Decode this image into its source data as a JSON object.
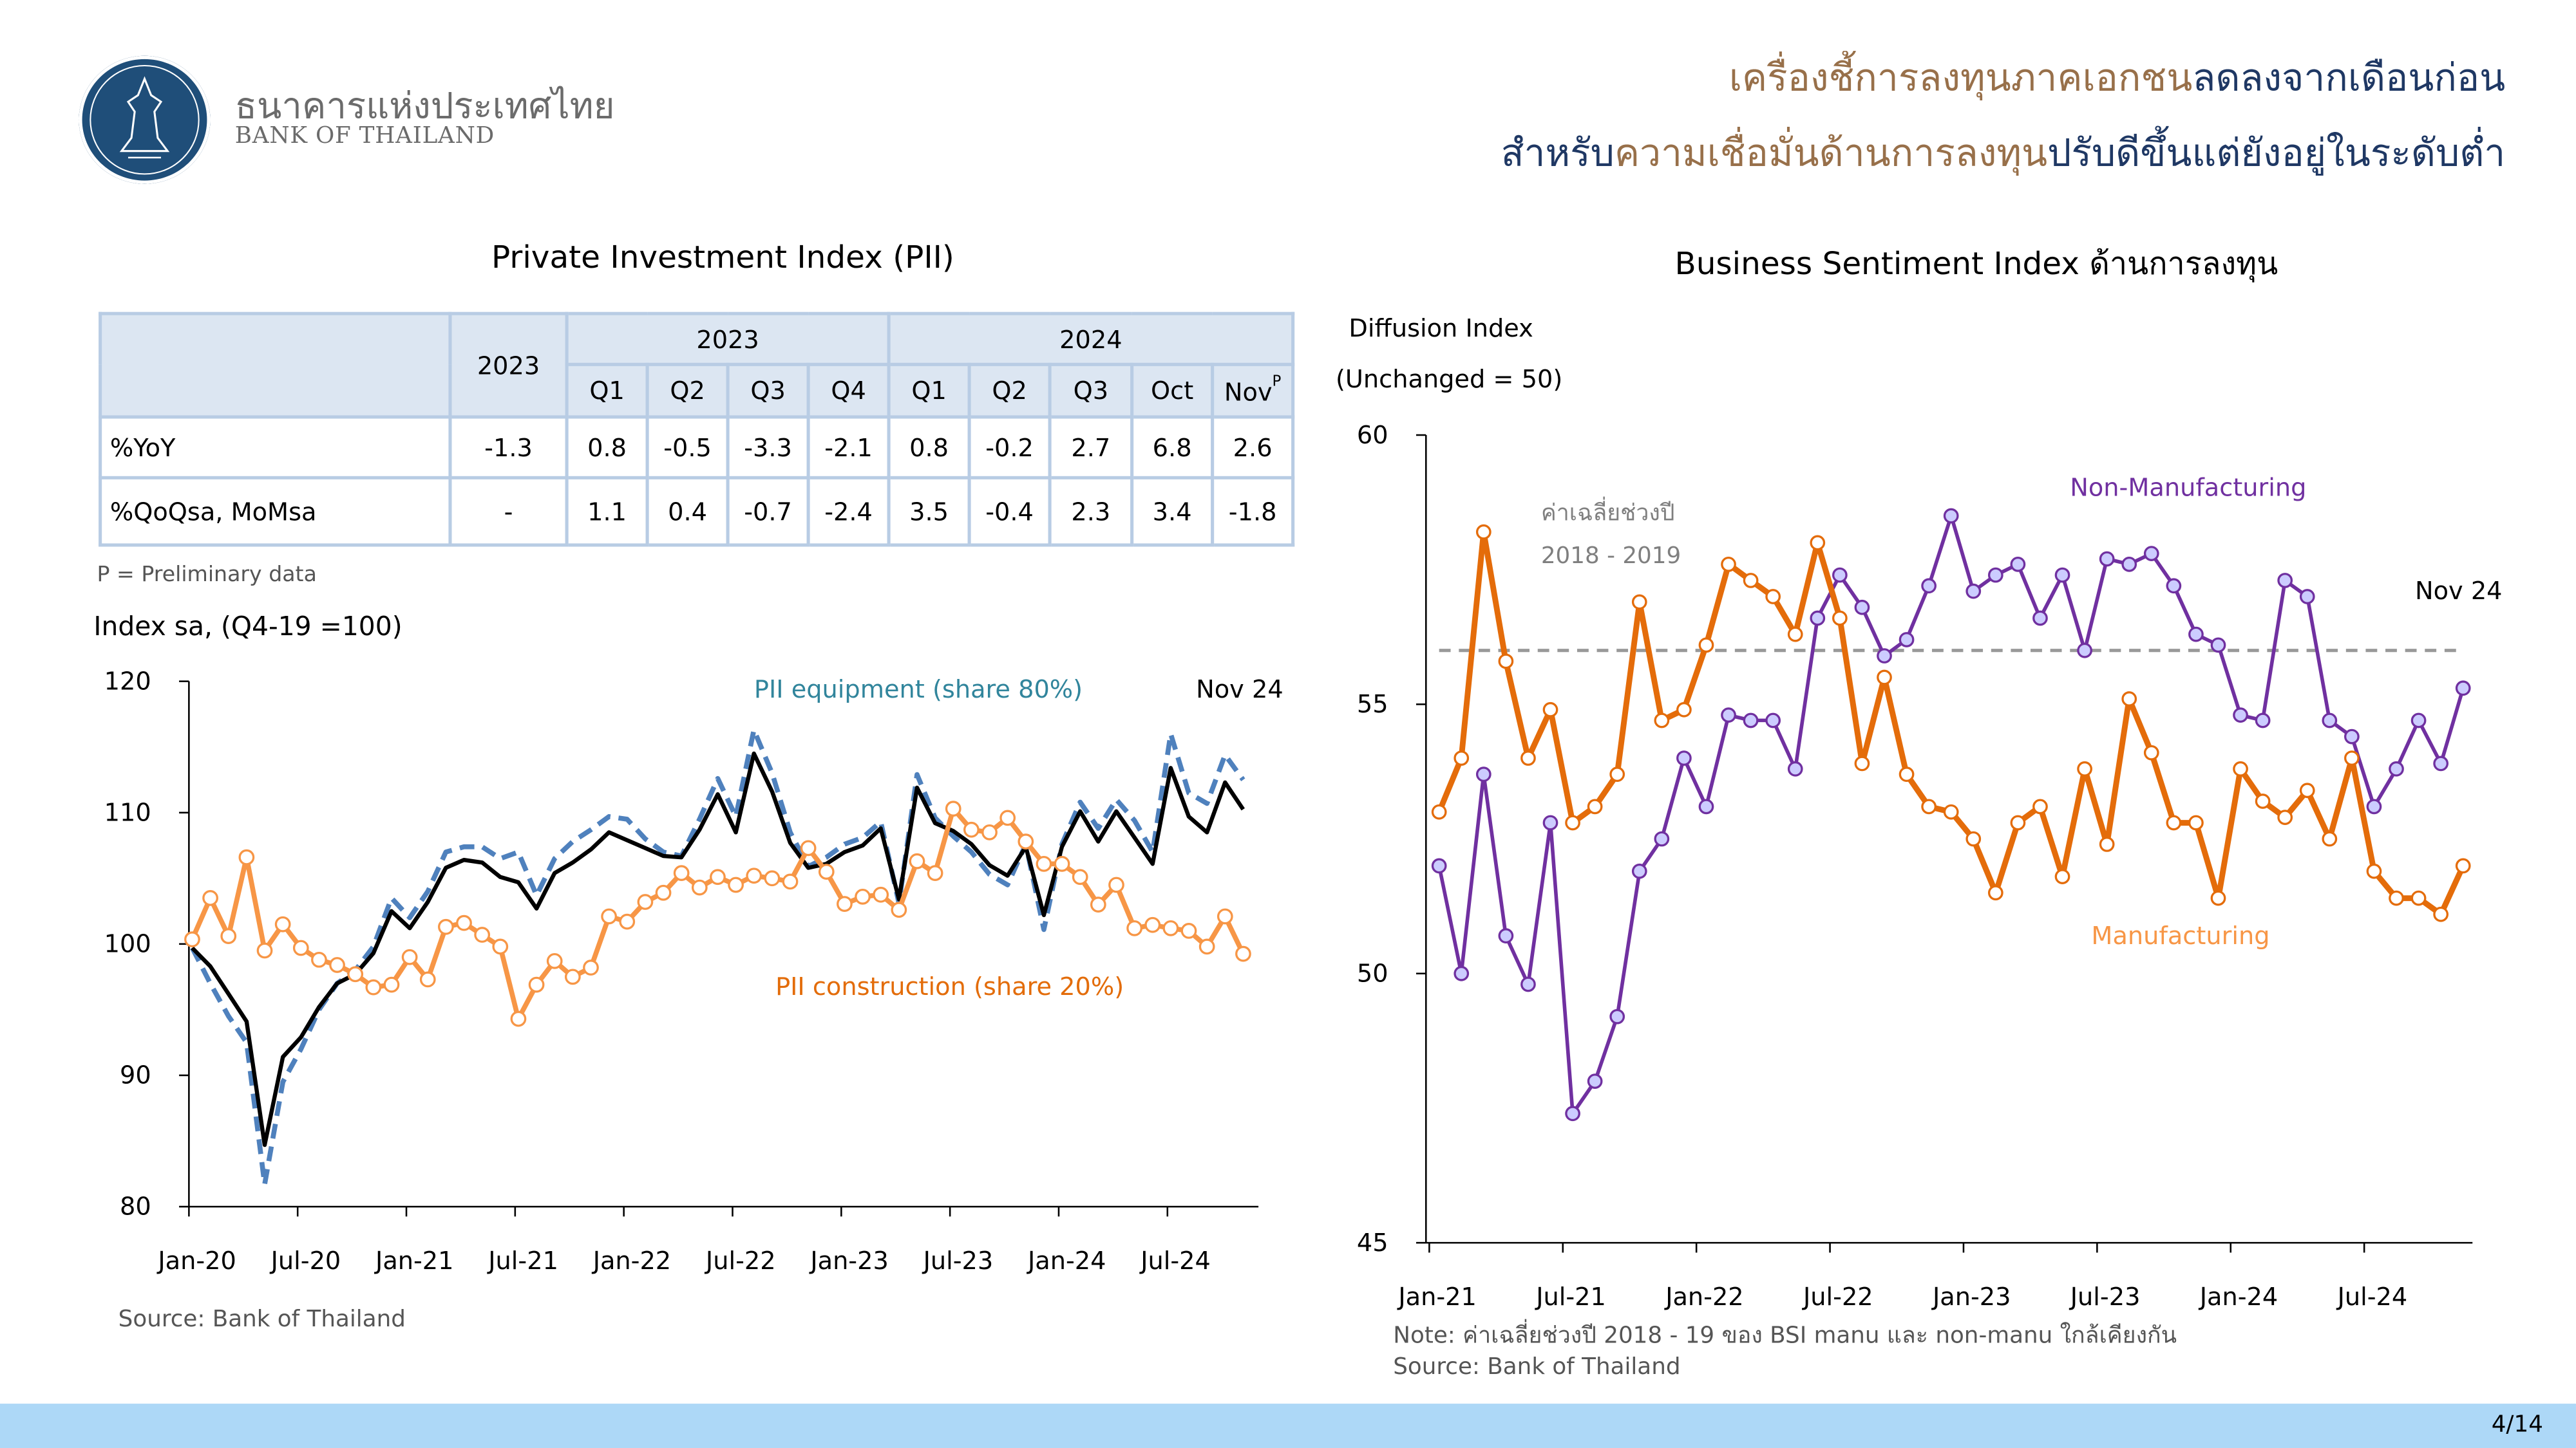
{
  "header": {
    "bank_name_th": "ธนาคารแห่งประเทศไทย",
    "bank_name_en": "BANK OF THAILAND",
    "headline_line1": [
      {
        "text": "เครื่องชี้การลงทุนภาคเอกชน",
        "color": "#98704A"
      },
      {
        "text": "ลดลงจากเดือนก่อน",
        "color": "#1F3864"
      }
    ],
    "headline_line2": [
      {
        "text": "สำหรับ",
        "color": "#1F3864"
      },
      {
        "text": "ความเชื่อมั่นด้านการลงทุน",
        "color": "#98704A"
      },
      {
        "text": "ปรับดีขึ้นแต่ยังอยู่ในระดับต่ำ",
        "color": "#1F3864"
      }
    ]
  },
  "left_panel": {
    "title": "Private Investment Index (PII)",
    "table": {
      "year_col": "2023",
      "group_2023": "2023",
      "group_2024": "2024",
      "periods": [
        "Q1",
        "Q2",
        "Q3",
        "Q4",
        "Q1",
        "Q2",
        "Q3",
        "Oct",
        "Nov"
      ],
      "nov_superscript": "P",
      "rows": [
        {
          "label": "%YoY",
          "year": "-1.3",
          "values": [
            "0.8",
            "-0.5",
            "-3.3",
            "-2.1",
            "0.8",
            "-0.2",
            "2.7",
            "6.8",
            "2.6"
          ]
        },
        {
          "label": "%QoQsa, MoMsa",
          "year": "-",
          "values": [
            "1.1",
            "0.4",
            "-0.7",
            "-2.4",
            "3.5",
            "-0.4",
            "2.3",
            "3.4",
            "-1.8"
          ]
        }
      ]
    },
    "footnote": "P = Preliminary data",
    "index_label": "Index sa, (Q4-19 =100)",
    "source": "Source: Bank of Thailand"
  },
  "right_panel": {
    "title": "Business Sentiment Index ด้านการลงทุน",
    "ylabel_line1": "Diffusion Index",
    "ylabel_line2": "(Unchanged = 50)",
    "note": "Note: ค่าเฉลี่ยช่วงปี 2018 - 19 ของ BSI manu และ non-manu ใกล้เคียงกัน",
    "source": "Source: Bank of Thailand"
  },
  "footer": {
    "page": "4/14"
  },
  "chart_data": [
    {
      "type": "line",
      "title": "Private Investment Index (PII)",
      "ylabel": "Index sa, (Q4-19 =100)",
      "x_start": "Jan-20",
      "x_end": "Nov-24",
      "frequency": "monthly",
      "xticks": [
        "Jan-20",
        "Jul-20",
        "Jan-21",
        "Jul-21",
        "Jan-22",
        "Jul-22",
        "Jan-23",
        "Jul-23",
        "Jan-24",
        "Jul-24"
      ],
      "yticks": [
        80,
        90,
        100,
        110,
        120
      ],
      "ylim": [
        80,
        120
      ],
      "annotation": "Nov 24",
      "series": [
        {
          "name": "PII",
          "color": "#000000",
          "style": "solid",
          "values": [
            99.7,
            98.3,
            96.2,
            94.1,
            84.7,
            91.4,
            92.9,
            95.2,
            97.0,
            97.7,
            99.3,
            102.5,
            101.2,
            103.2,
            105.8,
            106.4,
            106.2,
            105.1,
            104.7,
            102.7,
            105.4,
            106.2,
            107.2,
            108.5,
            107.9,
            107.3,
            106.7,
            106.6,
            108.7,
            111.4,
            108.5,
            114.5,
            111.6,
            107.7,
            105.8,
            106.1,
            107.0,
            107.5,
            108.8,
            103.4,
            111.9,
            109.2,
            108.6,
            107.6,
            106.0,
            105.2,
            107.4,
            102.2,
            107.4,
            110.1,
            107.8,
            110.1,
            108.1,
            106.1,
            113.4,
            109.7,
            108.5,
            112.3,
            110.25
          ]
        },
        {
          "name": "PII equipment (share 80%)",
          "color": "#4F81BD",
          "label_color": "#31859C",
          "style": "dashed",
          "values": [
            99.7,
            97.0,
            94.5,
            92.5,
            81.7,
            89.5,
            92.0,
            95.0,
            97.0,
            98.0,
            99.8,
            103.5,
            102.0,
            104.0,
            107.0,
            107.4,
            107.4,
            106.5,
            107.0,
            103.7,
            106.5,
            107.8,
            108.7,
            109.7,
            109.5,
            108.0,
            107.0,
            106.7,
            109.5,
            112.6,
            109.7,
            116.3,
            113.0,
            108.5,
            105.9,
            106.6,
            107.6,
            108.1,
            109.3,
            103.1,
            112.9,
            109.6,
            108.2,
            107.0,
            105.3,
            104.5,
            107.6,
            101.1,
            107.6,
            110.8,
            108.8,
            111.0,
            109.4,
            107.0,
            116.0,
            111.5,
            110.7,
            114.4,
            112.5
          ]
        },
        {
          "name": "PII construction (share 20%)",
          "color": "#F79646",
          "label_color": "#E36C09",
          "style": "solid-markers",
          "values": [
            100.35,
            103.5,
            100.6,
            106.6,
            99.5,
            101.5,
            99.7,
            98.8,
            98.4,
            97.7,
            96.7,
            96.9,
            99.0,
            97.3,
            101.3,
            101.6,
            100.7,
            99.8,
            94.3,
            96.9,
            98.7,
            97.5,
            98.2,
            102.1,
            101.7,
            103.2,
            103.9,
            105.4,
            104.3,
            105.1,
            104.5,
            105.2,
            105.0,
            104.75,
            107.3,
            105.5,
            103.05,
            103.6,
            103.75,
            102.6,
            106.3,
            105.4,
            110.3,
            108.7,
            108.5,
            109.6,
            107.8,
            106.1,
            106.1,
            105.1,
            103.0,
            104.5,
            101.2,
            101.45,
            101.2,
            101.0,
            99.8,
            102.1,
            99.25
          ]
        }
      ]
    },
    {
      "type": "line",
      "title": "Business Sentiment Index ด้านการลงทุน",
      "ylabel": "Diffusion Index (Unchanged = 50)",
      "x_start": "Jan-21",
      "x_end": "Nov-24",
      "frequency": "monthly",
      "xticks": [
        "Jan-21",
        "Jul-21",
        "Jan-22",
        "Jul-22",
        "Jan-23",
        "Jul-23",
        "Jan-24",
        "Jul-24"
      ],
      "yticks": [
        45,
        50,
        55,
        60
      ],
      "ylim": [
        45,
        60
      ],
      "reference_line": {
        "value": 56.0,
        "label_line1": "ค่าเฉลี่ยช่วงปี",
        "label_line2": "2018 - 2019",
        "color": "#999999"
      },
      "annotation": "Nov 24",
      "series": [
        {
          "name": "Non-Manufacturing",
          "color": "#7030A0",
          "marker_fill": "#CCCCFF",
          "values": [
            52.0,
            50.0,
            53.7,
            50.7,
            49.8,
            52.8,
            47.4,
            48.0,
            49.2,
            51.9,
            52.5,
            54.0,
            53.1,
            54.8,
            54.7,
            54.7,
            53.8,
            56.6,
            57.4,
            56.8,
            55.9,
            56.2,
            57.2,
            58.5,
            57.1,
            57.4,
            57.6,
            56.6,
            57.4,
            56.0,
            57.7,
            57.6,
            57.8,
            57.2,
            56.3,
            56.1,
            54.8,
            54.7,
            57.3,
            57.0,
            54.7,
            54.4,
            53.1,
            53.8,
            54.7,
            53.9,
            55.3
          ]
        },
        {
          "name": "Manufacturing",
          "color": "#E46C0A",
          "label_color": "#F79646",
          "marker_fill": "#FFFFFF",
          "values": [
            53.0,
            54.0,
            58.2,
            55.8,
            54.0,
            54.9,
            52.8,
            53.1,
            53.7,
            56.9,
            54.7,
            54.9,
            56.1,
            57.6,
            57.3,
            57.0,
            56.3,
            58.0,
            56.6,
            53.9,
            55.5,
            53.7,
            53.1,
            53.0,
            52.5,
            51.5,
            52.8,
            53.1,
            51.8,
            53.8,
            52.4,
            55.1,
            54.1,
            52.8,
            52.8,
            51.4,
            53.8,
            53.2,
            52.9,
            53.4,
            52.5,
            54.0,
            51.9,
            51.4,
            51.4,
            51.1,
            52.0
          ]
        }
      ]
    }
  ]
}
